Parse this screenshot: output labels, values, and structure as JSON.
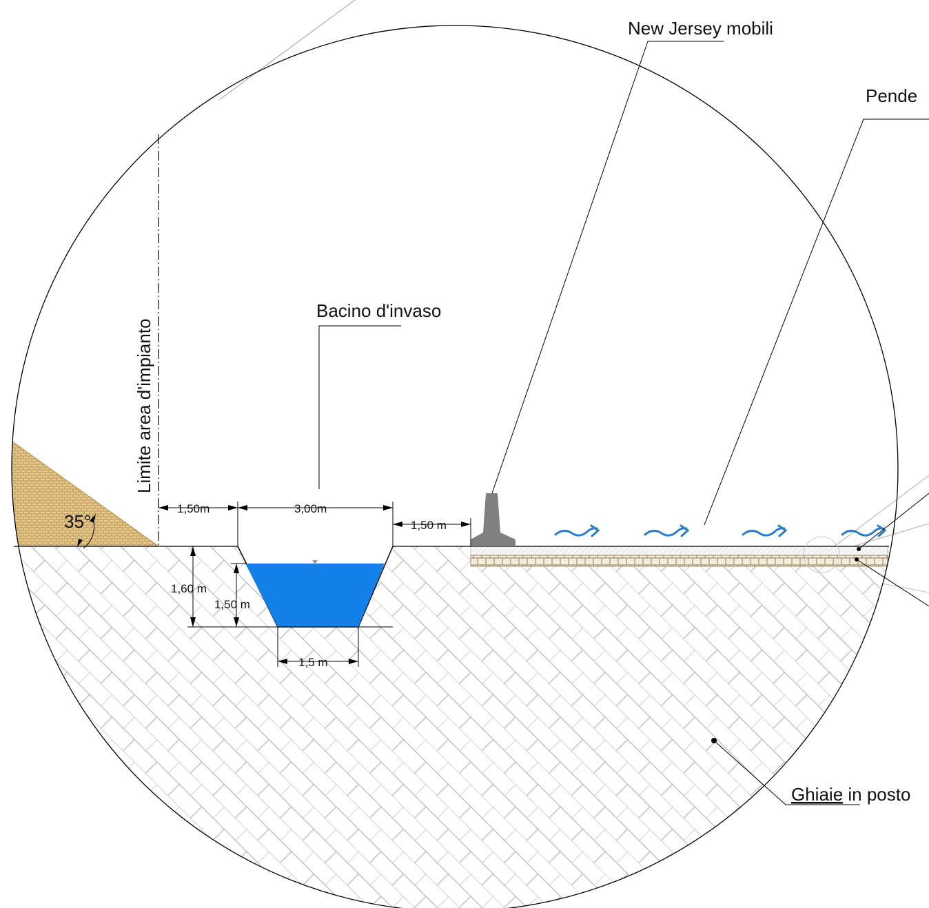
{
  "labels": {
    "new_jersey": "New Jersey mobili",
    "pendenza": "Pende",
    "bacino": "Bacino d'invaso",
    "limite": "Limite area d'impianto",
    "ghiaie": "Ghiaie",
    "ghiaie_rest": " in posto"
  },
  "dimensions": {
    "left_berm": "1,50m",
    "top_width": "3,00m",
    "right_berm": "1,50 m",
    "total_depth": "1,60 m",
    "water_depth": "1,50 m",
    "bottom_width": "1,5  m",
    "slope_angle": "35°"
  },
  "colors": {
    "water": "#1380e8",
    "flow_arrows": "#2a7bc8",
    "slope_fill": "#e6c98f",
    "slope_hatch": "#b08a3e",
    "barrier": "#808080",
    "ground_hatch": "#b9b9b9",
    "outline": "#000000"
  }
}
